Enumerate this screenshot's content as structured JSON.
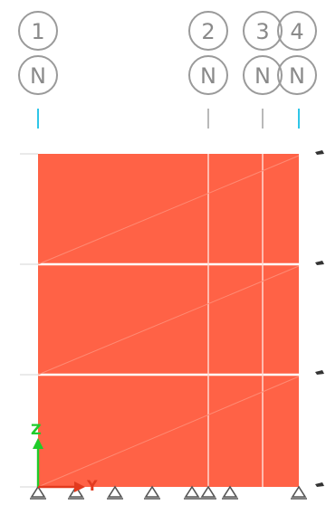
{
  "grid_bubbles": [
    {
      "id": "1",
      "sub": "N"
    },
    {
      "id": "2",
      "sub": "N"
    },
    {
      "id": "3",
      "sub": "N"
    },
    {
      "id": "4",
      "sub": "N"
    }
  ],
  "axes": {
    "vertical": "Z",
    "horizontal": "Y"
  },
  "colors": {
    "wall_fill": "#ff6246",
    "bubble_stroke": "#9a9a9a",
    "bubble_text": "#8a8a8a",
    "axis_z": "#1fcc2a",
    "axis_y": "#e23a1e",
    "highlight_tick": "#2fc6e8"
  },
  "icons": {
    "support": "pin-support-icon",
    "story_marker": "story-marker-icon"
  }
}
